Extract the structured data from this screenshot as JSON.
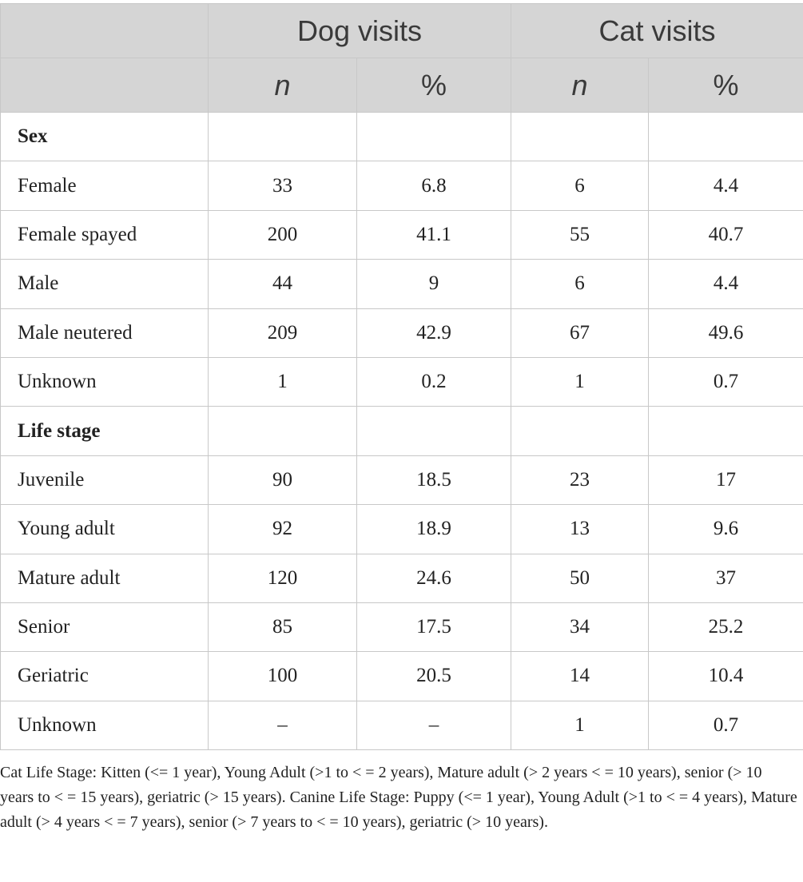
{
  "header": {
    "groups": [
      "Dog visits",
      "Cat visits"
    ],
    "subheaders": [
      "n",
      "%",
      "n",
      "%"
    ]
  },
  "rows": [
    {
      "label": "Sex",
      "section": true,
      "values": [
        "",
        "",
        "",
        ""
      ]
    },
    {
      "label": "Female",
      "section": false,
      "values": [
        "33",
        "6.8",
        "6",
        "4.4"
      ]
    },
    {
      "label": "Female spayed",
      "section": false,
      "values": [
        "200",
        "41.1",
        "55",
        "40.7"
      ]
    },
    {
      "label": "Male",
      "section": false,
      "values": [
        "44",
        "9",
        "6",
        "4.4"
      ]
    },
    {
      "label": "Male neutered",
      "section": false,
      "values": [
        "209",
        "42.9",
        "67",
        "49.6"
      ]
    },
    {
      "label": "Unknown",
      "section": false,
      "values": [
        "1",
        "0.2",
        "1",
        "0.7"
      ]
    },
    {
      "label": "Life stage",
      "section": true,
      "values": [
        "",
        "",
        "",
        ""
      ]
    },
    {
      "label": "Juvenile",
      "section": false,
      "values": [
        "90",
        "18.5",
        "23",
        "17"
      ]
    },
    {
      "label": "Young adult",
      "section": false,
      "values": [
        "92",
        "18.9",
        "13",
        "9.6"
      ]
    },
    {
      "label": "Mature adult",
      "section": false,
      "values": [
        "120",
        "24.6",
        "50",
        "37"
      ]
    },
    {
      "label": "Senior",
      "section": false,
      "values": [
        "85",
        "17.5",
        "34",
        "25.2"
      ]
    },
    {
      "label": "Geriatric",
      "section": false,
      "values": [
        "100",
        "20.5",
        "14",
        "10.4"
      ]
    },
    {
      "label": "Unknown",
      "section": false,
      "values": [
        "–",
        "–",
        "1",
        "0.7"
      ]
    }
  ],
  "footnote": "Cat Life Stage: Kitten (<= 1 year), Young Adult (>1 to < = 2 years), Mature adult (> 2 years < = 10 years), senior (> 10 years to < = 15 years), geriatric (> 15 years). Canine Life Stage: Puppy (<= 1 year), Young Adult (>1 to < = 4 years), Mature adult (> 4 years < = 7 years), senior (> 7 years to < = 10 years), geriatric (> 10 years).",
  "colors": {
    "header_background": "#d5d5d5",
    "border": "#c8c8c8",
    "text": "#222222"
  }
}
